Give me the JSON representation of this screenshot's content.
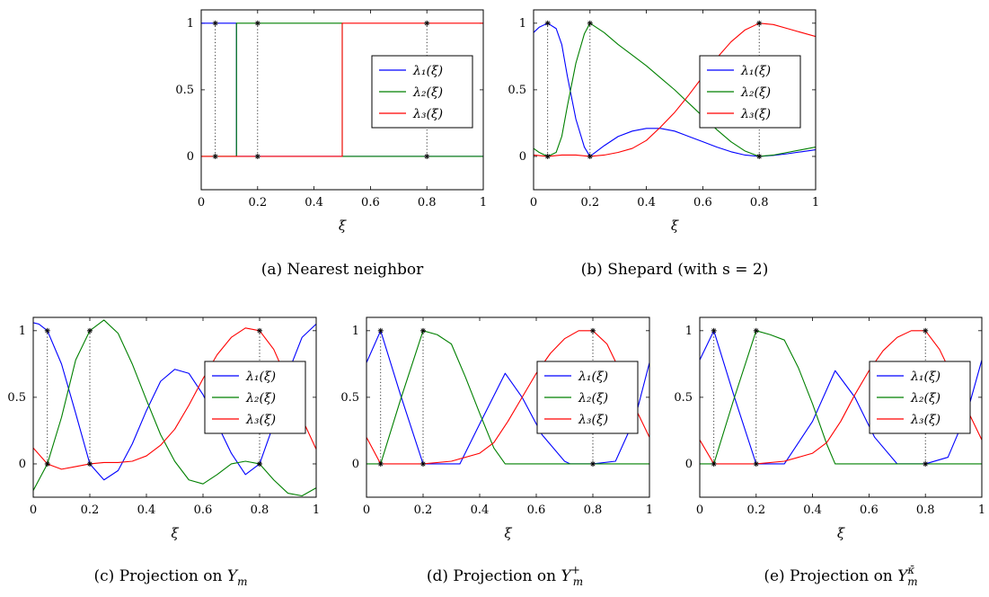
{
  "chart_data": [
    {
      "type": "line",
      "caption": "(a) Nearest neighbor",
      "xlabel": "ξ",
      "xlim": [
        0,
        1
      ],
      "ylim": [
        -0.25,
        1.1
      ],
      "xticks": [
        "0",
        "0.2",
        "0.4",
        "0.6",
        "0.8",
        "1"
      ],
      "yticks": [
        "0",
        "0.5",
        "1"
      ],
      "legend": "right-middle",
      "nodes": [
        0.05,
        0.2,
        0.8
      ],
      "series": [
        {
          "name": "λ₁(ξ)",
          "color": "#0000ff",
          "x": [
            0,
            0.125,
            0.125,
            1
          ],
          "values": [
            1,
            1,
            0,
            0
          ]
        },
        {
          "name": "λ₂(ξ)",
          "color": "#008000",
          "x": [
            0,
            0.125,
            0.125,
            0.5,
            0.5,
            1
          ],
          "values": [
            0,
            0,
            1,
            1,
            0,
            0
          ]
        },
        {
          "name": "λ₃(ξ)",
          "color": "#ff0000",
          "x": [
            0,
            0.5,
            0.5,
            1
          ],
          "values": [
            0,
            0,
            1,
            1
          ]
        }
      ]
    },
    {
      "type": "line",
      "caption": "(b) Shepard (with s = 2)",
      "xlabel": "ξ",
      "xlim": [
        0,
        1
      ],
      "ylim": [
        -0.25,
        1.1
      ],
      "xticks": [
        "0",
        "0.2",
        "0.4",
        "0.6",
        "0.8",
        "1"
      ],
      "yticks": [
        "0",
        "0.5",
        "1"
      ],
      "legend": "right-middle",
      "nodes": [
        0.05,
        0.2,
        0.8
      ],
      "series": [
        {
          "name": "λ₁(ξ)",
          "color": "#0000ff",
          "x": [
            0,
            0.02,
            0.05,
            0.08,
            0.1,
            0.12,
            0.15,
            0.18,
            0.2,
            0.25,
            0.3,
            0.35,
            0.4,
            0.45,
            0.5,
            0.55,
            0.6,
            0.65,
            0.7,
            0.75,
            0.8,
            0.85,
            0.9,
            0.95,
            1
          ],
          "values": [
            0.93,
            0.97,
            1,
            0.96,
            0.84,
            0.6,
            0.28,
            0.07,
            0,
            0.08,
            0.15,
            0.19,
            0.21,
            0.21,
            0.19,
            0.15,
            0.11,
            0.07,
            0.035,
            0.01,
            0,
            0.008,
            0.02,
            0.035,
            0.05
          ]
        },
        {
          "name": "λ₂(ξ)",
          "color": "#008000",
          "x": [
            0,
            0.02,
            0.05,
            0.08,
            0.1,
            0.12,
            0.15,
            0.18,
            0.2,
            0.25,
            0.3,
            0.35,
            0.4,
            0.45,
            0.5,
            0.55,
            0.6,
            0.65,
            0.7,
            0.75,
            0.8,
            0.85,
            0.9,
            0.95,
            1
          ],
          "values": [
            0.06,
            0.03,
            0,
            0.03,
            0.15,
            0.38,
            0.7,
            0.92,
            1,
            0.93,
            0.84,
            0.76,
            0.68,
            0.59,
            0.5,
            0.4,
            0.3,
            0.2,
            0.11,
            0.04,
            0,
            0.01,
            0.03,
            0.05,
            0.07
          ]
        },
        {
          "name": "λ₃(ξ)",
          "color": "#ff0000",
          "x": [
            0,
            0.05,
            0.1,
            0.15,
            0.2,
            0.25,
            0.3,
            0.35,
            0.4,
            0.45,
            0.5,
            0.55,
            0.6,
            0.65,
            0.7,
            0.75,
            0.8,
            0.85,
            0.9,
            0.95,
            1
          ],
          "values": [
            0.01,
            0,
            0.01,
            0.01,
            0,
            0.01,
            0.03,
            0.06,
            0.12,
            0.22,
            0.33,
            0.46,
            0.6,
            0.74,
            0.86,
            0.95,
            1,
            0.99,
            0.96,
            0.93,
            0.9
          ]
        }
      ]
    },
    {
      "type": "line",
      "caption_prefix": "(c) Projection on ",
      "caption_math": "Y",
      "caption_sub": "m",
      "caption_sup": "",
      "xlabel": "ξ",
      "xlim": [
        0,
        1
      ],
      "ylim": [
        -0.25,
        1.1
      ],
      "xticks": [
        "0",
        "0.2",
        "0.4",
        "0.6",
        "0.8",
        "1"
      ],
      "yticks": [
        "0",
        "0.5",
        "1"
      ],
      "legend": "right-middle",
      "nodes": [
        0.05,
        0.2,
        0.8
      ],
      "series": [
        {
          "name": "λ₁(ξ)",
          "color": "#0000ff",
          "x": [
            0,
            0.02,
            0.05,
            0.1,
            0.15,
            0.2,
            0.25,
            0.3,
            0.35,
            0.4,
            0.45,
            0.5,
            0.55,
            0.6,
            0.65,
            0.7,
            0.75,
            0.8,
            0.85,
            0.9,
            0.95,
            1
          ],
          "values": [
            1.06,
            1.05,
            1,
            0.75,
            0.38,
            0,
            -0.12,
            -0.05,
            0.15,
            0.4,
            0.62,
            0.71,
            0.68,
            0.52,
            0.3,
            0.08,
            -0.08,
            0,
            0.3,
            0.68,
            0.95,
            1.05
          ]
        },
        {
          "name": "λ₂(ξ)",
          "color": "#008000",
          "x": [
            0,
            0.025,
            0.05,
            0.1,
            0.15,
            0.2,
            0.25,
            0.3,
            0.35,
            0.4,
            0.45,
            0.5,
            0.55,
            0.6,
            0.65,
            0.7,
            0.75,
            0.8,
            0.85,
            0.9,
            0.95,
            1
          ],
          "values": [
            -0.2,
            -0.1,
            0,
            0.35,
            0.78,
            1,
            1.08,
            0.98,
            0.75,
            0.48,
            0.22,
            0.02,
            -0.12,
            -0.15,
            -0.08,
            0,
            0.02,
            0,
            -0.12,
            -0.22,
            -0.24,
            -0.18
          ]
        },
        {
          "name": "λ₃(ξ)",
          "color": "#ff0000",
          "x": [
            0,
            0.05,
            0.1,
            0.15,
            0.2,
            0.25,
            0.3,
            0.35,
            0.4,
            0.45,
            0.5,
            0.55,
            0.6,
            0.65,
            0.7,
            0.75,
            0.8,
            0.85,
            0.9,
            0.95,
            1
          ],
          "values": [
            0.12,
            0,
            -0.04,
            -0.02,
            0,
            0.01,
            0.01,
            0.02,
            0.06,
            0.14,
            0.26,
            0.44,
            0.64,
            0.82,
            0.95,
            1.02,
            1,
            0.86,
            0.62,
            0.34,
            0.11
          ]
        }
      ]
    },
    {
      "type": "line",
      "caption_prefix": "(d) Projection on ",
      "caption_math": "Y",
      "caption_sub": "m",
      "caption_sup": "+",
      "xlabel": "ξ",
      "xlim": [
        0,
        1
      ],
      "ylim": [
        -0.25,
        1.1
      ],
      "xticks": [
        "0",
        "0.2",
        "0.4",
        "0.6",
        "0.8",
        "1"
      ],
      "yticks": [
        "0",
        "0.5",
        "1"
      ],
      "legend": "right-middle",
      "nodes": [
        0.05,
        0.2,
        0.8
      ],
      "series": [
        {
          "name": "λ₁(ξ)",
          "color": "#0000ff",
          "x": [
            0,
            0.05,
            0.12,
            0.2,
            0.3,
            0.33,
            0.4,
            0.49,
            0.55,
            0.62,
            0.7,
            0.72,
            0.8,
            0.88,
            0.95,
            1
          ],
          "values": [
            0.76,
            1,
            0.52,
            0,
            0,
            0,
            0.3,
            0.68,
            0.5,
            0.22,
            0.02,
            0,
            0,
            0.02,
            0.35,
            0.76
          ]
        },
        {
          "name": "λ₂(ξ)",
          "color": "#008000",
          "x": [
            0,
            0.05,
            0.12,
            0.2,
            0.25,
            0.3,
            0.35,
            0.4,
            0.45,
            0.49,
            0.5,
            0.6,
            0.7,
            0.8,
            0.9,
            1
          ],
          "values": [
            0,
            0,
            0.48,
            1,
            0.97,
            0.9,
            0.65,
            0.38,
            0.12,
            0,
            0,
            0,
            0,
            0,
            0,
            0
          ]
        },
        {
          "name": "λ₃(ξ)",
          "color": "#ff0000",
          "x": [
            0,
            0.05,
            0.1,
            0.2,
            0.3,
            0.4,
            0.45,
            0.5,
            0.55,
            0.6,
            0.65,
            0.7,
            0.75,
            0.8,
            0.85,
            0.9,
            0.95,
            1
          ],
          "values": [
            0.2,
            0,
            0,
            0,
            0.02,
            0.08,
            0.16,
            0.32,
            0.5,
            0.68,
            0.83,
            0.94,
            1,
            1,
            0.9,
            0.68,
            0.42,
            0.2
          ]
        }
      ]
    },
    {
      "type": "line",
      "caption_prefix": "(e) Projection on ",
      "caption_math": "Y",
      "caption_sub": "m",
      "caption_sup": "κ̄",
      "xlabel": "ξ",
      "xlim": [
        0,
        1
      ],
      "ylim": [
        -0.25,
        1.1
      ],
      "xticks": [
        "0",
        "0.2",
        "0.4",
        "0.6",
        "0.8",
        "1"
      ],
      "yticks": [
        "0",
        "0.5",
        "1"
      ],
      "legend": "right-middle",
      "nodes": [
        0.05,
        0.2,
        0.8
      ],
      "series": [
        {
          "name": "λ₁(ξ)",
          "color": "#0000ff",
          "x": [
            0,
            0.05,
            0.12,
            0.2,
            0.3,
            0.4,
            0.48,
            0.55,
            0.62,
            0.7,
            0.8,
            0.88,
            0.95,
            1
          ],
          "values": [
            0.78,
            1,
            0.52,
            0,
            0,
            0.32,
            0.7,
            0.5,
            0.2,
            0,
            0,
            0.05,
            0.4,
            0.78
          ]
        },
        {
          "name": "λ₂(ξ)",
          "color": "#008000",
          "x": [
            0,
            0.05,
            0.12,
            0.2,
            0.25,
            0.3,
            0.35,
            0.4,
            0.45,
            0.48,
            0.5,
            0.6,
            0.7,
            0.8,
            0.9,
            1
          ],
          "values": [
            0,
            0,
            0.48,
            1,
            0.97,
            0.93,
            0.72,
            0.45,
            0.15,
            0,
            0,
            0,
            0,
            0,
            0,
            0
          ]
        },
        {
          "name": "λ₃(ξ)",
          "color": "#ff0000",
          "x": [
            0,
            0.05,
            0.1,
            0.2,
            0.3,
            0.4,
            0.45,
            0.5,
            0.55,
            0.6,
            0.65,
            0.7,
            0.75,
            0.8,
            0.85,
            0.9,
            0.95,
            1
          ],
          "values": [
            0.18,
            0,
            0,
            0,
            0.02,
            0.08,
            0.16,
            0.32,
            0.52,
            0.7,
            0.85,
            0.95,
            1,
            1,
            0.86,
            0.64,
            0.4,
            0.18
          ]
        }
      ]
    }
  ]
}
